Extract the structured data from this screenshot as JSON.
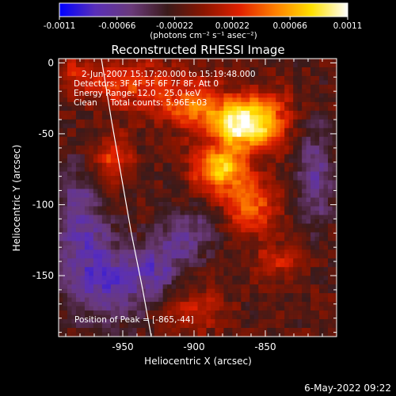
{
  "chart_data": {
    "type": "heatmap",
    "title": "Reconstructed RHESSI Image",
    "xlabel": "Heliocentric X (arcsec)",
    "ylabel": "Heliocentric Y (arcsec)",
    "xlim": [
      -995,
      -800
    ],
    "ylim": [
      -193,
      3
    ],
    "x_ticks": [
      -950,
      -900,
      -850
    ],
    "y_ticks": [
      0,
      -50,
      -100,
      -150
    ],
    "colorbar": {
      "min": -0.0011,
      "max": 0.0011,
      "ticks": [
        "-0.0011",
        "-0.00066",
        "-0.00022",
        "0.00022",
        "0.00066",
        "0.0011"
      ],
      "units_label": "(photons cm⁻² s⁻¹ asec⁻²)",
      "colors": [
        "#0000ff",
        "#5a2fb8",
        "#6a3a7a",
        "#3a1a1a",
        "#8a1500",
        "#e02000",
        "#ff8000",
        "#ffe000",
        "#ffffff"
      ]
    },
    "info_lines": [
      "2-Jun-2007 15:17:20.000 to 15:19:48.000",
      "Detectors: 3F 4F 5F 6F 7F 8F, Att 0",
      "Energy Range: 12.0 - 25.0 keV",
      "Clean     Total counts: 5.96E+03"
    ],
    "peak_label": "Position of Peak = [-865,-44]",
    "peak": [
      -865,
      -44
    ],
    "limb_curve": [
      [
        -965,
        3
      ],
      [
        -958,
        -40
      ],
      [
        -951,
        -80
      ],
      [
        -944,
        -120
      ],
      [
        -936,
        -160
      ],
      [
        -930,
        -193
      ]
    ],
    "sources": [
      {
        "x": -868,
        "y": -44,
        "peak": 1.0,
        "sigma_x": 13,
        "sigma_y": 12
      },
      {
        "x": -882,
        "y": -75,
        "peak": 0.85,
        "sigma_x": 13,
        "sigma_y": 11
      },
      {
        "x": -848,
        "y": -40,
        "peak": 0.55,
        "sigma_x": 12,
        "sigma_y": 14
      },
      {
        "x": -900,
        "y": -30,
        "peak": 0.6,
        "sigma_x": 16,
        "sigma_y": 12
      },
      {
        "x": -860,
        "y": -100,
        "peak": 0.55,
        "sigma_x": 14,
        "sigma_y": 14
      },
      {
        "x": -945,
        "y": -15,
        "peak": 0.45,
        "sigma_x": 22,
        "sigma_y": 12
      },
      {
        "x": -958,
        "y": -70,
        "peak": 0.45,
        "sigma_x": 10,
        "sigma_y": 14
      },
      {
        "x": -840,
        "y": -140,
        "peak": 0.35,
        "sigma_x": 12,
        "sigma_y": 8
      },
      {
        "x": -900,
        "y": -175,
        "peak": 0.35,
        "sigma_x": 14,
        "sigma_y": 10
      },
      {
        "x": -985,
        "y": -8,
        "peak": 0.3,
        "sigma_x": 10,
        "sigma_y": 10
      },
      {
        "x": -960,
        "y": -155,
        "peak": -0.5,
        "sigma_x": 22,
        "sigma_y": 20
      },
      {
        "x": -980,
        "y": -110,
        "peak": -0.45,
        "sigma_x": 14,
        "sigma_y": 28
      },
      {
        "x": -905,
        "y": -120,
        "peak": -0.4,
        "sigma_x": 14,
        "sigma_y": 14
      },
      {
        "x": -815,
        "y": -80,
        "peak": -0.4,
        "sigma_x": 10,
        "sigma_y": 28
      },
      {
        "x": -925,
        "y": -145,
        "peak": -0.35,
        "sigma_x": 12,
        "sigma_y": 12
      }
    ],
    "noise_amplitude": 0.12,
    "grid": false
  },
  "footer": {
    "date": "6-May-2022 09:22"
  }
}
